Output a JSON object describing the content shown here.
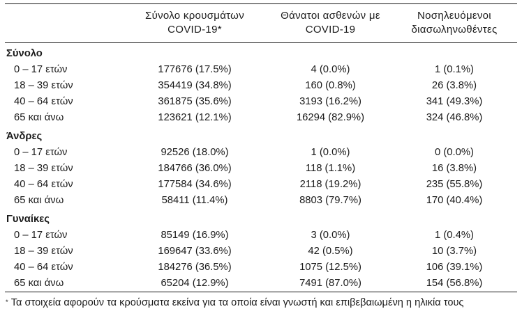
{
  "meta": {
    "background_color": "#ffffff",
    "text_color": "#1b1b1b",
    "rule_color": "#161616"
  },
  "table": {
    "header": {
      "cases_line1": "Σύνολο κρουσμάτων",
      "cases_line2": "COVID-19*",
      "deaths_line1": "Θάνατοι ασθενών με",
      "deaths_line2": "COVID-19",
      "intubated_line1": "Νοσηλευόμενοι",
      "intubated_line2": "διασωληνωθέντες"
    },
    "rows": [
      {
        "type": "section",
        "label": "Σύνολο"
      },
      {
        "type": "data",
        "label": "0 – 17 ετών",
        "cases": "177676 (17.5%)",
        "deaths": "4 (0.0%)",
        "intubated": "1 (0.1%)"
      },
      {
        "type": "data",
        "label": "18 – 39 ετών",
        "cases": "354419 (34.8%)",
        "deaths": "160 (0.8%)",
        "intubated": "26 (3.8%)"
      },
      {
        "type": "data",
        "label": "40 – 64 ετών",
        "cases": "361875 (35.6%)",
        "deaths": "3193 (16.2%)",
        "intubated": "341 (49.3%)"
      },
      {
        "type": "data",
        "label": "65 και άνω",
        "cases": "123621 (12.1%)",
        "deaths": "16294 (82.9%)",
        "intubated": "324 (46.8%)"
      },
      {
        "type": "section",
        "label": "Άνδρες"
      },
      {
        "type": "data",
        "label": "0 – 17 ετών",
        "cases": "92526 (18.0%)",
        "deaths": "1 (0.0%)",
        "intubated": "0 (0.0%)"
      },
      {
        "type": "data",
        "label": "18 – 39 ετών",
        "cases": "184766 (36.0%)",
        "deaths": "118 (1.1%)",
        "intubated": "16 (3.8%)"
      },
      {
        "type": "data",
        "label": "40 – 64 ετών",
        "cases": "177584 (34.6%)",
        "deaths": "2118 (19.2%)",
        "intubated": "235 (55.8%)"
      },
      {
        "type": "data",
        "label": "65 και άνω",
        "cases": "58411 (11.4%)",
        "deaths": "8803 (79.7%)",
        "intubated": "170 (40.4%)"
      },
      {
        "type": "section",
        "label": "Γυναίκες"
      },
      {
        "type": "data",
        "label": "0 – 17 ετών",
        "cases": "85149 (16.9%)",
        "deaths": "3 (0.0%)",
        "intubated": "1 (0.4%)"
      },
      {
        "type": "data",
        "label": "18 – 39 ετών",
        "cases": "169647 (33.6%)",
        "deaths": "42 (0.5%)",
        "intubated": "10 (3.7%)"
      },
      {
        "type": "data",
        "label": "40 – 64 ετών",
        "cases": "184276 (36.5%)",
        "deaths": "1075 (12.5%)",
        "intubated": "106 (39.1%)"
      },
      {
        "type": "data",
        "label": "65 και άνω",
        "cases": "65204 (12.9%)",
        "deaths": "7491 (87.0%)",
        "intubated": "154 (56.8%)"
      }
    ]
  },
  "footnote": {
    "marker": "*",
    "text": "Τα στοιχεία αφορούν τα κρούσματα εκείνα για τα οποία είναι γνωστή και επιβεβαιωμένη η ηλικία τους"
  },
  "chart_data": {
    "type": "table",
    "columns": [
      "",
      "Σύνολο κρουσμάτων COVID-19*",
      "Θάνατοι ασθενών με COVID-19",
      "Νοσηλευόμενοι διασωληνωθέντες"
    ],
    "row_groups": [
      {
        "group": "Σύνολο",
        "rows": [
          {
            "label": "0 – 17 ετών",
            "cases_n": 177676,
            "cases_pct": 17.5,
            "deaths_n": 4,
            "deaths_pct": 0.0,
            "intubated_n": 1,
            "intubated_pct": 0.1
          },
          {
            "label": "18 – 39 ετών",
            "cases_n": 354419,
            "cases_pct": 34.8,
            "deaths_n": 160,
            "deaths_pct": 0.8,
            "intubated_n": 26,
            "intubated_pct": 3.8
          },
          {
            "label": "40 – 64 ετών",
            "cases_n": 361875,
            "cases_pct": 35.6,
            "deaths_n": 3193,
            "deaths_pct": 16.2,
            "intubated_n": 341,
            "intubated_pct": 49.3
          },
          {
            "label": "65 και άνω",
            "cases_n": 123621,
            "cases_pct": 12.1,
            "deaths_n": 16294,
            "deaths_pct": 82.9,
            "intubated_n": 324,
            "intubated_pct": 46.8
          }
        ]
      },
      {
        "group": "Άνδρες",
        "rows": [
          {
            "label": "0 – 17 ετών",
            "cases_n": 92526,
            "cases_pct": 18.0,
            "deaths_n": 1,
            "deaths_pct": 0.0,
            "intubated_n": 0,
            "intubated_pct": 0.0
          },
          {
            "label": "18 – 39 ετών",
            "cases_n": 184766,
            "cases_pct": 36.0,
            "deaths_n": 118,
            "deaths_pct": 1.1,
            "intubated_n": 16,
            "intubated_pct": 3.8
          },
          {
            "label": "40 – 64 ετών",
            "cases_n": 177584,
            "cases_pct": 34.6,
            "deaths_n": 2118,
            "deaths_pct": 19.2,
            "intubated_n": 235,
            "intubated_pct": 55.8
          },
          {
            "label": "65 και άνω",
            "cases_n": 58411,
            "cases_pct": 11.4,
            "deaths_n": 8803,
            "deaths_pct": 79.7,
            "intubated_n": 170,
            "intubated_pct": 40.4
          }
        ]
      },
      {
        "group": "Γυναίκες",
        "rows": [
          {
            "label": "0 – 17 ετών",
            "cases_n": 85149,
            "cases_pct": 16.9,
            "deaths_n": 3,
            "deaths_pct": 0.0,
            "intubated_n": 1,
            "intubated_pct": 0.4
          },
          {
            "label": "18 – 39 ετών",
            "cases_n": 169647,
            "cases_pct": 33.6,
            "deaths_n": 42,
            "deaths_pct": 0.5,
            "intubated_n": 10,
            "intubated_pct": 3.7
          },
          {
            "label": "40 – 64 ετών",
            "cases_n": 184276,
            "cases_pct": 36.5,
            "deaths_n": 1075,
            "deaths_pct": 12.5,
            "intubated_n": 106,
            "intubated_pct": 39.1
          },
          {
            "label": "65 και άνω",
            "cases_n": 65204,
            "cases_pct": 12.9,
            "deaths_n": 7491,
            "deaths_pct": 87.0,
            "intubated_n": 154,
            "intubated_pct": 56.8
          }
        ]
      }
    ],
    "footnote": "* Τα στοιχεία αφορούν τα κρούσματα εκείνα για τα οποία είναι γνωστή και επιβεβαιωμένη η ηλικία τους",
    "layout": {
      "grid": false,
      "value_format": "count (percent%)",
      "rules": [
        "top",
        "below-header",
        "above-footnote"
      ]
    }
  }
}
